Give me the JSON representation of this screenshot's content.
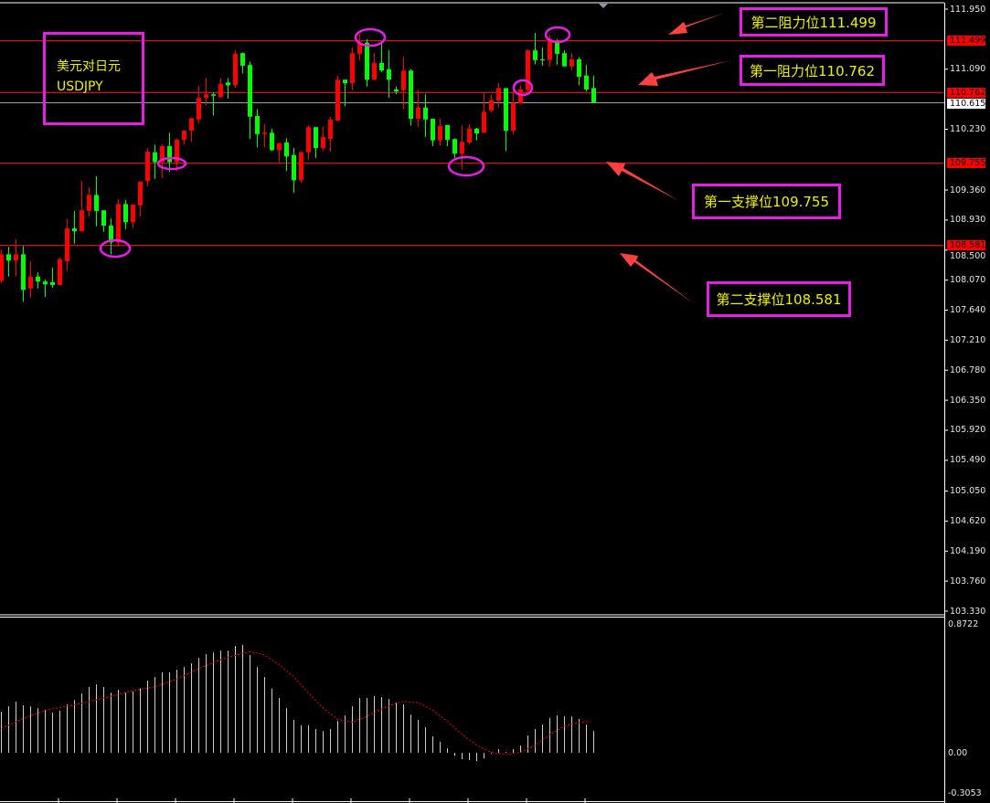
{
  "symbol_box": {
    "line1": "美元对日元",
    "line2": "USDJPY"
  },
  "annotations": [
    {
      "text": "第二阻力位111.499"
    },
    {
      "text": "第一阻力位110.762"
    },
    {
      "text": "第一支撑位109.755"
    },
    {
      "text": "第二支撑位108.581"
    }
  ],
  "levels": [
    {
      "label": "111.499",
      "value": 111.499,
      "color": "#ff0000"
    },
    {
      "label": "110.762",
      "value": 110.762,
      "color": "#ff0000"
    },
    {
      "label": "109.755",
      "value": 109.755,
      "color": "#ff0000"
    },
    {
      "label": "108.581",
      "value": 108.581,
      "color": "#ff0000"
    }
  ],
  "current_price": {
    "label": "110.615",
    "value": 110.615,
    "color": "#a0a0a0"
  },
  "colors": {
    "background": "#000000",
    "up": "#ff0000",
    "down": "#00ff00",
    "annotation": "#e81ee8",
    "text": "#f0f000",
    "arrow": "#ff4040"
  },
  "chart_data": [
    {
      "type": "candlestick",
      "ylim": [
        103.33,
        111.95
      ],
      "yticks": [
        "111.950",
        "111.090",
        "110.230",
        "109.360",
        "108.930",
        "108.500",
        "108.070",
        "107.640",
        "107.210",
        "106.780",
        "106.350",
        "105.920",
        "105.490",
        "105.050",
        "104.620",
        "104.190",
        "103.760",
        "103.330"
      ],
      "candles_ohlc": [
        [
          108.06,
          108.51,
          108.03,
          108.44
        ],
        [
          108.44,
          108.55,
          108.12,
          108.35
        ],
        [
          108.35,
          108.65,
          108.12,
          108.44
        ],
        [
          108.44,
          108.56,
          107.76,
          107.93
        ],
        [
          107.95,
          108.34,
          107.82,
          108.12
        ],
        [
          108.12,
          108.18,
          107.95,
          108.05
        ],
        [
          108.05,
          108.08,
          107.83,
          108.01
        ],
        [
          108.04,
          108.25,
          107.96,
          108.0
        ],
        [
          108.0,
          108.39,
          107.99,
          108.37
        ],
        [
          108.34,
          108.95,
          108.2,
          108.81
        ],
        [
          108.81,
          109.06,
          108.59,
          108.77
        ],
        [
          108.77,
          109.49,
          108.76,
          109.07
        ],
        [
          109.06,
          109.4,
          108.98,
          109.29
        ],
        [
          109.29,
          109.56,
          108.84,
          109.06
        ],
        [
          109.07,
          109.07,
          108.76,
          108.85
        ],
        [
          108.85,
          108.95,
          108.44,
          108.61
        ],
        [
          108.61,
          109.23,
          108.55,
          109.16
        ],
        [
          109.16,
          109.22,
          108.8,
          108.9
        ],
        [
          108.9,
          109.16,
          108.82,
          109.15
        ],
        [
          109.14,
          109.48,
          108.98,
          109.48
        ],
        [
          109.49,
          109.96,
          109.41,
          109.91
        ],
        [
          109.9,
          110.01,
          109.52,
          109.76
        ],
        [
          109.76,
          110.01,
          109.53,
          109.99
        ],
        [
          109.99,
          110.18,
          109.62,
          109.76
        ],
        [
          109.76,
          110.1,
          109.63,
          110.08
        ],
        [
          110.08,
          110.21,
          110.01,
          110.21
        ],
        [
          110.21,
          110.39,
          110.05,
          110.39
        ],
        [
          110.37,
          110.85,
          110.31,
          110.68
        ],
        [
          110.68,
          110.96,
          110.58,
          110.73
        ],
        [
          110.73,
          110.76,
          110.43,
          110.71
        ],
        [
          110.69,
          110.96,
          110.68,
          110.88
        ],
        [
          110.9,
          110.96,
          110.67,
          110.86
        ],
        [
          110.86,
          111.36,
          110.82,
          111.31
        ],
        [
          111.32,
          111.33,
          111.03,
          111.14
        ],
        [
          111.15,
          111.2,
          110.09,
          110.41
        ],
        [
          110.42,
          110.52,
          109.97,
          110.16
        ],
        [
          110.16,
          110.31,
          109.97,
          110.18
        ],
        [
          110.18,
          110.24,
          109.92,
          109.93
        ],
        [
          109.93,
          110.03,
          109.76,
          110.03
        ],
        [
          110.04,
          110.1,
          109.63,
          109.84
        ],
        [
          109.86,
          109.96,
          109.32,
          109.5
        ],
        [
          109.5,
          109.92,
          109.46,
          109.9
        ],
        [
          109.9,
          110.29,
          109.79,
          110.26
        ],
        [
          110.26,
          110.26,
          109.82,
          109.96
        ],
        [
          109.96,
          110.27,
          109.92,
          110.12
        ],
        [
          110.09,
          110.41,
          109.91,
          110.37
        ],
        [
          110.35,
          111.0,
          110.35,
          110.94
        ],
        [
          110.94,
          110.94,
          110.56,
          110.89
        ],
        [
          110.89,
          111.4,
          110.79,
          111.32
        ],
        [
          111.31,
          111.6,
          111.22,
          111.47
        ],
        [
          111.47,
          111.52,
          110.84,
          110.94
        ],
        [
          110.94,
          111.32,
          110.93,
          111.18
        ],
        [
          111.18,
          111.49,
          111.05,
          111.07
        ],
        [
          111.09,
          111.36,
          110.68,
          110.94
        ],
        [
          110.8,
          110.84,
          110.73,
          110.77
        ],
        [
          110.79,
          111.26,
          110.52,
          111.07
        ],
        [
          111.07,
          111.09,
          110.28,
          110.38
        ],
        [
          110.38,
          110.79,
          110.26,
          110.54
        ],
        [
          110.54,
          110.73,
          110.12,
          110.37
        ],
        [
          110.38,
          110.38,
          109.99,
          110.07
        ],
        [
          110.07,
          110.39,
          110.0,
          110.28
        ],
        [
          110.29,
          110.29,
          109.99,
          110.08
        ],
        [
          110.09,
          110.1,
          109.79,
          109.88
        ],
        [
          109.88,
          110.29,
          109.66,
          110.05
        ],
        [
          110.04,
          110.3,
          110.01,
          110.24
        ],
        [
          110.24,
          110.25,
          110.07,
          110.17
        ],
        [
          110.18,
          110.75,
          110.18,
          110.48
        ],
        [
          110.5,
          110.73,
          110.47,
          110.65
        ],
        [
          110.64,
          110.89,
          110.54,
          110.82
        ],
        [
          110.82,
          110.82,
          109.92,
          110.21
        ],
        [
          110.21,
          110.86,
          110.16,
          110.61
        ],
        [
          110.6,
          110.86,
          110.59,
          110.8
        ],
        [
          110.79,
          111.37,
          110.75,
          111.36
        ],
        [
          111.36,
          111.61,
          111.16,
          111.22
        ],
        [
          111.23,
          111.4,
          111.14,
          111.22
        ],
        [
          111.22,
          111.58,
          111.13,
          111.52
        ],
        [
          111.47,
          111.52,
          111.15,
          111.31
        ],
        [
          111.32,
          111.36,
          111.13,
          111.13
        ],
        [
          111.13,
          111.32,
          111.07,
          111.23
        ],
        [
          111.23,
          111.26,
          110.86,
          110.98
        ],
        [
          111.0,
          111.15,
          110.77,
          110.8
        ],
        [
          110.82,
          111.0,
          110.6,
          110.615
        ]
      ]
    },
    {
      "type": "bar",
      "ylim": [
        -0.3053,
        0.8722
      ],
      "yticks": [
        "0.8722",
        "0.00",
        "-0.3053"
      ],
      "histogram": [
        0.265,
        0.3,
        0.33,
        0.306,
        0.3,
        0.288,
        0.275,
        0.259,
        0.271,
        0.312,
        0.341,
        0.383,
        0.424,
        0.441,
        0.424,
        0.388,
        0.406,
        0.388,
        0.396,
        0.416,
        0.465,
        0.489,
        0.518,
        0.518,
        0.536,
        0.553,
        0.577,
        0.612,
        0.636,
        0.647,
        0.659,
        0.659,
        0.689,
        0.695,
        0.63,
        0.553,
        0.489,
        0.412,
        0.353,
        0.288,
        0.212,
        0.177,
        0.177,
        0.153,
        0.141,
        0.153,
        0.206,
        0.241,
        0.3,
        0.353,
        0.353,
        0.365,
        0.359,
        0.347,
        0.324,
        0.312,
        0.247,
        0.212,
        0.165,
        0.106,
        0.071,
        0.029,
        -0.018,
        -0.04,
        -0.047,
        -0.053,
        -0.035,
        -0.006,
        0.024,
        0.006,
        0.024,
        0.047,
        0.112,
        0.153,
        0.182,
        0.224,
        0.241,
        0.235,
        0.235,
        0.218,
        0.182,
        0.141
      ],
      "signal": [
        [
          0,
          0.157
        ],
        [
          3,
          0.222
        ],
        [
          6,
          0.275
        ],
        [
          8,
          0.292
        ],
        [
          11,
          0.32
        ],
        [
          14,
          0.353
        ],
        [
          18,
          0.402
        ],
        [
          21,
          0.426
        ],
        [
          24,
          0.477
        ],
        [
          27,
          0.543
        ],
        [
          30,
          0.602
        ],
        [
          33,
          0.642
        ],
        [
          34,
          0.651
        ],
        [
          36,
          0.632
        ],
        [
          38,
          0.569
        ],
        [
          40,
          0.49
        ],
        [
          42,
          0.386
        ],
        [
          44,
          0.288
        ],
        [
          46,
          0.216
        ],
        [
          48,
          0.198
        ],
        [
          50,
          0.235
        ],
        [
          52,
          0.284
        ],
        [
          54,
          0.32
        ],
        [
          55,
          0.332
        ],
        [
          57,
          0.324
        ],
        [
          59,
          0.275
        ],
        [
          61,
          0.202
        ],
        [
          63,
          0.118
        ],
        [
          65,
          0.049
        ],
        [
          67,
          0.004
        ],
        [
          69,
          -0.012
        ],
        [
          71,
          0.004
        ],
        [
          73,
          0.049
        ],
        [
          75,
          0.118
        ],
        [
          77,
          0.173
        ],
        [
          79,
          0.196
        ],
        [
          80.5,
          0.204
        ]
      ],
      "histogram_color": "#d0d0d0",
      "signal_color": "#ff0000"
    }
  ]
}
